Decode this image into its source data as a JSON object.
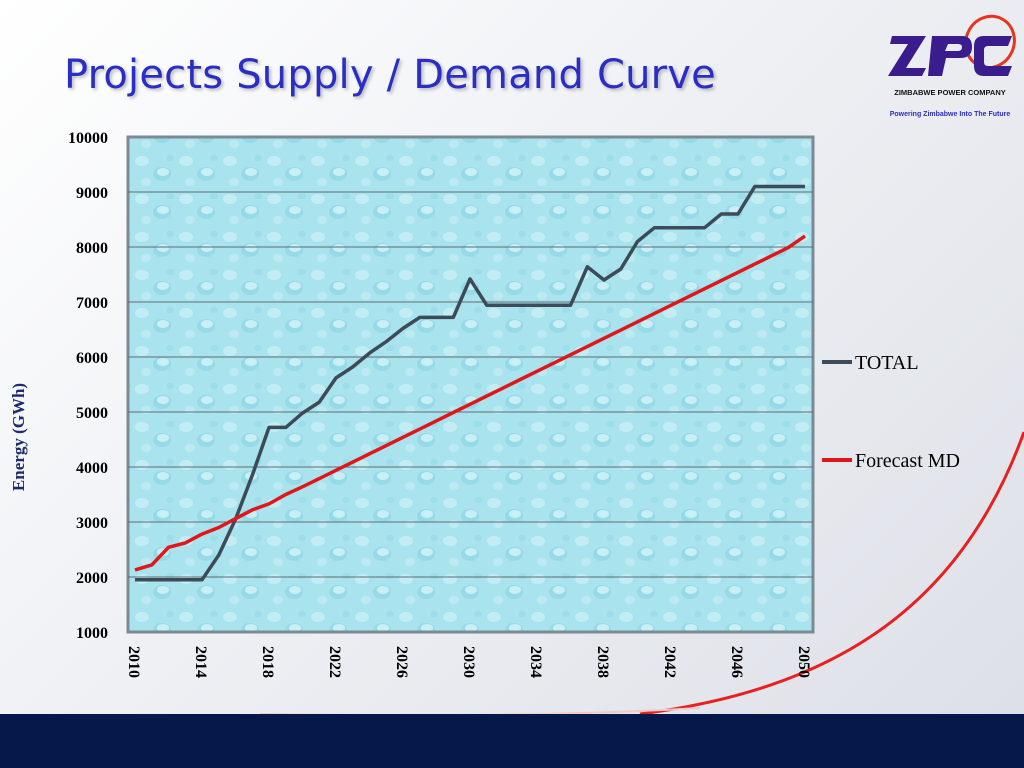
{
  "slide": {
    "title": "Projects Supply / Demand Curve"
  },
  "logo": {
    "mark": "ZPC",
    "company": "ZIMBABWE POWER COMPANY",
    "tagline": "Powering Zimbabwe Into The Future"
  },
  "colors": {
    "title": "#2b2ec4",
    "total_series": "#3d4a57",
    "forecast_series": "#e0161b",
    "plot_background": "#a8e3ee",
    "footer": "#04184a"
  },
  "chart_data": {
    "type": "line",
    "title": "",
    "xlabel": "",
    "ylabel": "Energy (GWh)",
    "xlim": [
      2010,
      2050
    ],
    "ylim": [
      1000,
      10000
    ],
    "x_ticks": [
      "2010",
      "2014",
      "2018",
      "2022",
      "2026",
      "2030",
      "2034",
      "2038",
      "2042",
      "2046",
      "2050"
    ],
    "y_ticks": [
      "1000",
      "2000",
      "3000",
      "4000",
      "5000",
      "6000",
      "7000",
      "8000",
      "9000",
      "10000"
    ],
    "grid": "horizontal",
    "legend_position": "right",
    "series": [
      {
        "name": "TOTAL",
        "x": [
          2010,
          2011,
          2012,
          2013,
          2014,
          2015,
          2016,
          2017,
          2018,
          2019,
          2020,
          2021,
          2022,
          2023,
          2024,
          2025,
          2026,
          2027,
          2028,
          2029,
          2030,
          2031,
          2032,
          2033,
          2034,
          2035,
          2036,
          2037,
          2038,
          2039,
          2040,
          2041,
          2042,
          2043,
          2044,
          2045,
          2046,
          2047,
          2048,
          2049,
          2050
        ],
        "values": [
          1950,
          1950,
          1950,
          1950,
          1950,
          2400,
          3050,
          3850,
          4720,
          4720,
          4980,
          5180,
          5620,
          5820,
          6070,
          6280,
          6520,
          6720,
          6720,
          6720,
          7420,
          6940,
          6940,
          6940,
          6940,
          6940,
          6940,
          7640,
          7400,
          7600,
          8100,
          8350,
          8350,
          8350,
          8350,
          8600,
          8600,
          9100,
          9100,
          9100,
          9100
        ]
      },
      {
        "name": "Forecast MD",
        "x": [
          2010,
          2011,
          2012,
          2013,
          2014,
          2015,
          2016,
          2017,
          2018,
          2019,
          2020,
          2021,
          2022,
          2023,
          2024,
          2025,
          2026,
          2027,
          2028,
          2029,
          2030,
          2031,
          2032,
          2033,
          2034,
          2035,
          2036,
          2037,
          2038,
          2039,
          2040,
          2041,
          2042,
          2043,
          2044,
          2045,
          2046,
          2047,
          2048,
          2049,
          2050
        ],
        "values": [
          2130,
          2220,
          2540,
          2620,
          2780,
          2900,
          3060,
          3220,
          3330,
          3500,
          3640,
          3790,
          3940,
          4090,
          4240,
          4390,
          4540,
          4690,
          4840,
          4990,
          5140,
          5290,
          5440,
          5590,
          5740,
          5890,
          6040,
          6190,
          6340,
          6490,
          6640,
          6790,
          6940,
          7090,
          7240,
          7390,
          7540,
          7690,
          7840,
          7990,
          8200
        ]
      }
    ]
  }
}
